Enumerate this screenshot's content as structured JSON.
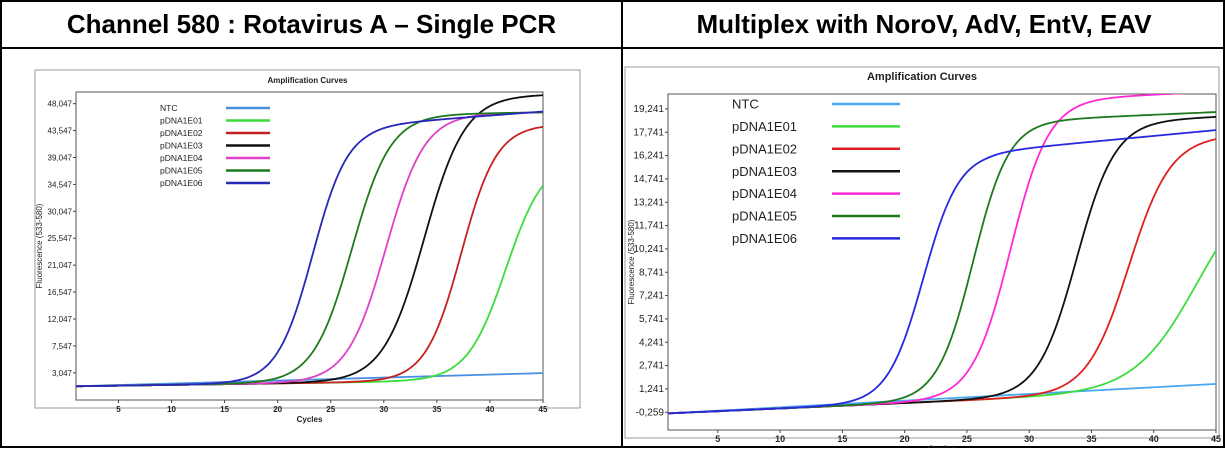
{
  "headers": {
    "left": "Channel 580 : Rotavirus A – Single PCR",
    "right": "Multiplex with NoroV, AdV, EntV, EAV"
  },
  "chart_data": [
    {
      "type": "line",
      "title": "Amplification Curves",
      "xlabel": "Cycles",
      "ylabel": "Fluorescence (533-580)",
      "xlim": [
        1,
        45
      ],
      "ylim": [
        -1500,
        50000
      ],
      "xticks": [
        5,
        10,
        15,
        20,
        25,
        30,
        35,
        40,
        45
      ],
      "yticks": [
        3047,
        7547,
        12047,
        16547,
        21047,
        25547,
        30047,
        34547,
        39047,
        43547,
        48047
      ],
      "ytick_labels": [
        "3,047",
        "7,547",
        "12,047",
        "16,547",
        "21,047",
        "25,547",
        "30,047",
        "34,547",
        "39,047",
        "43,547",
        "48,047"
      ],
      "grid": false,
      "legend_position": "top-left",
      "series": [
        {
          "name": "NTC",
          "color": "#4a90e2",
          "kind": "linear",
          "base": 800,
          "slope": 50
        },
        {
          "name": "pDNA1E01",
          "color": "#3ddc3d",
          "kind": "sigmoid",
          "base": 800,
          "slope": 25,
          "plateau": 38000,
          "mid": 41.5,
          "k": 0.55
        },
        {
          "name": "pDNA1E02",
          "color": "#c62020",
          "kind": "sigmoid",
          "base": 800,
          "slope": 25,
          "plateau": 43500,
          "mid": 37.3,
          "k": 0.6
        },
        {
          "name": "pDNA1E03",
          "color": "#111111",
          "kind": "sigmoid",
          "base": 800,
          "slope": 25,
          "plateau": 48500,
          "mid": 33.8,
          "k": 0.52
        },
        {
          "name": "pDNA1E04",
          "color": "#e040c8",
          "kind": "sigmoid",
          "base": 800,
          "slope": 25,
          "plateau": 45500,
          "mid": 30.2,
          "k": 0.55
        },
        {
          "name": "pDNA1E05",
          "color": "#1e7a1e",
          "kind": "sigmoid",
          "base": 800,
          "slope": 25,
          "plateau": 45500,
          "mid": 27.0,
          "k": 0.55
        },
        {
          "name": "pDNA1E06",
          "color": "#2828b8",
          "kind": "sigmoid",
          "base": 800,
          "slope": 25,
          "plateau": 43800,
          "mid": 23.3,
          "k": 0.6,
          "drift": 110
        }
      ]
    },
    {
      "type": "line",
      "title": "Amplification Curves",
      "xlabel": "Cycles",
      "ylabel": "Fluorescence (533-580)",
      "xlim": [
        1,
        45
      ],
      "ylim": [
        -1400,
        20200
      ],
      "xticks": [
        5,
        10,
        15,
        20,
        25,
        30,
        35,
        40,
        45
      ],
      "yticks": [
        -259,
        1241,
        2741,
        4241,
        5741,
        7241,
        8741,
        10241,
        11741,
        13241,
        14741,
        16241,
        17741,
        19241
      ],
      "ytick_labels": [
        "-0,259",
        "1,241",
        "2,741",
        "4,241",
        "5,741",
        "7,241",
        "8,741",
        "10,241",
        "11,741",
        "13,241",
        "14,741",
        "16,241",
        "17,741",
        "19,241"
      ],
      "grid": false,
      "legend_position": "top-left",
      "series": [
        {
          "name": "NTC",
          "color": "#4aa8f0",
          "kind": "linear",
          "base": -330,
          "slope": 43
        },
        {
          "name": "pDNA1E01",
          "color": "#3ddc3d",
          "kind": "sigmoid",
          "base": -330,
          "slope": 35,
          "plateau": 13500,
          "mid": 43.5,
          "k": 0.4
        },
        {
          "name": "pDNA1E02",
          "color": "#e02020",
          "kind": "sigmoid",
          "base": -330,
          "slope": 35,
          "plateau": 16000,
          "mid": 38.0,
          "k": 0.6
        },
        {
          "name": "pDNA1E03",
          "color": "#111111",
          "kind": "sigmoid",
          "base": -330,
          "slope": 35,
          "plateau": 17200,
          "mid": 33.8,
          "k": 0.65
        },
        {
          "name": "pDNA1E04",
          "color": "#ff2ad4",
          "kind": "sigmoid",
          "base": -330,
          "slope": 35,
          "plateau": 18800,
          "mid": 28.5,
          "k": 0.65
        },
        {
          "name": "pDNA1E05",
          "color": "#1e7a1e",
          "kind": "sigmoid",
          "base": -330,
          "slope": 35,
          "plateau": 17500,
          "mid": 25.5,
          "k": 0.7
        },
        {
          "name": "pDNA1E06",
          "color": "#2828e0",
          "kind": "sigmoid",
          "base": -330,
          "slope": 35,
          "plateau": 15600,
          "mid": 21.5,
          "k": 0.7,
          "drift": 40
        }
      ]
    }
  ]
}
